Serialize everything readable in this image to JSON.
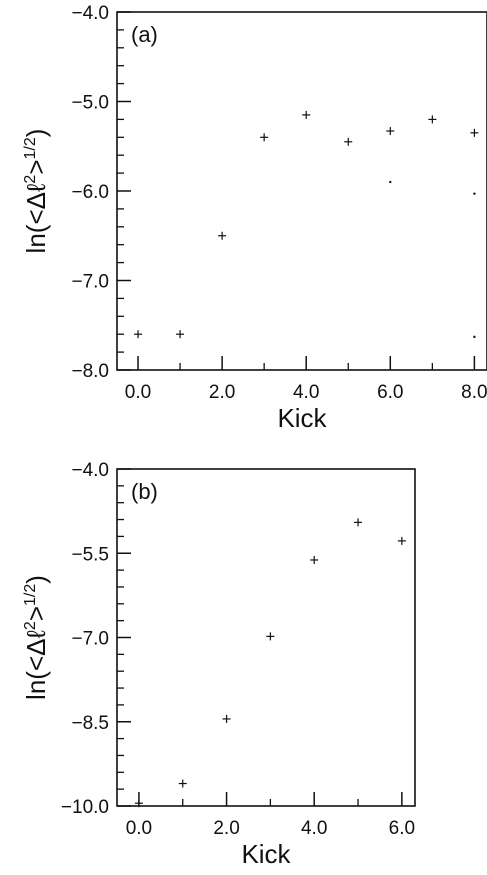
{
  "chart_data": [
    {
      "type": "scatter",
      "panel_label": "(a)",
      "xlabel": "Kick",
      "ylabel_parts": {
        "prefix": "ln(<Δℓ",
        "superscript1": "2",
        "middle": ">",
        "superscript2": "1/2",
        "suffix": ")"
      },
      "xlim": [
        -0.5,
        8.3
      ],
      "ylim": [
        -8.0,
        -4.0
      ],
      "x_ticks": [
        0,
        2,
        4,
        6,
        8
      ],
      "x_tick_labels": [
        "0.0",
        "2.0",
        "4.0",
        "6.0",
        "8.0"
      ],
      "y_ticks": [
        -8,
        -7,
        -6,
        -5,
        -4
      ],
      "y_tick_labels": [
        "−8.0",
        "−7.0",
        "−6.0",
        "−5.0",
        "−4.0"
      ],
      "x_minor_step": 1,
      "y_minor_step": 0.2,
      "grid": false,
      "series": [
        {
          "marker": "+",
          "x": [
            0,
            1,
            2,
            3,
            4,
            5,
            6,
            7,
            8
          ],
          "y": [
            -7.6,
            -7.6,
            -6.5,
            -5.4,
            -5.15,
            -5.45,
            -5.33,
            -5.2,
            -5.35
          ]
        },
        {
          "marker": "dot",
          "x": [
            6,
            8,
            8
          ],
          "y": [
            -5.9,
            -6.03,
            -7.63
          ]
        }
      ]
    },
    {
      "type": "scatter",
      "panel_label": "(b)",
      "xlabel": "Kick",
      "ylabel_parts": {
        "prefix": "ln(<Δℓ",
        "superscript1": "2",
        "middle": ">",
        "superscript2": "1/2",
        "suffix": ")"
      },
      "xlim": [
        -0.5,
        6.3
      ],
      "ylim": [
        -10.0,
        -4.0
      ],
      "x_ticks": [
        0,
        2,
        4,
        6
      ],
      "x_tick_labels": [
        "0.0",
        "2.0",
        "4.0",
        "6.0"
      ],
      "y_ticks": [
        -10,
        -8.5,
        -7,
        -5.5,
        -4
      ],
      "y_tick_labels": [
        "−10.0",
        "−8.5",
        "−7.0",
        "−5.5",
        "−4.0"
      ],
      "x_minor_step": 1,
      "y_minor_step": 0.3,
      "grid": false,
      "series": [
        {
          "marker": "+",
          "x": [
            0,
            1,
            2,
            3,
            4,
            5,
            6
          ],
          "y": [
            -9.95,
            -9.6,
            -8.45,
            -6.98,
            -5.62,
            -4.95,
            -5.28
          ]
        }
      ]
    }
  ]
}
